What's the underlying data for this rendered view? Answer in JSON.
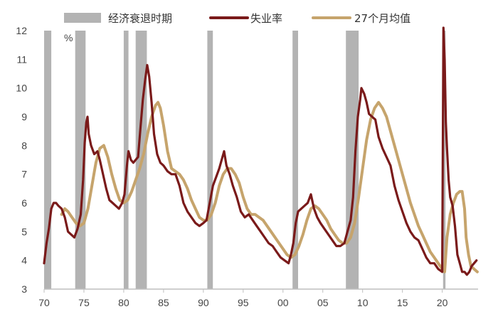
{
  "chart_data": {
    "type": "line",
    "unit": "%",
    "x_ticks": [
      {
        "x": 1970,
        "label": "70"
      },
      {
        "x": 1975,
        "label": "75"
      },
      {
        "x": 1980,
        "label": "80"
      },
      {
        "x": 1985,
        "label": "85"
      },
      {
        "x": 1990,
        "label": "90"
      },
      {
        "x": 1995,
        "label": "95"
      },
      {
        "x": 2000,
        "label": "00"
      },
      {
        "x": 2005,
        "label": "05"
      },
      {
        "x": 2010,
        "label": "10"
      },
      {
        "x": 2015,
        "label": "15"
      },
      {
        "x": 2020,
        "label": "20"
      }
    ],
    "xlim": [
      1970,
      2024.5
    ],
    "ylim": [
      3,
      12
    ],
    "y_ticks": [
      3,
      4,
      5,
      6,
      7,
      8,
      9,
      10,
      11,
      12
    ],
    "grid": false,
    "legend_position": "top",
    "legend": [
      {
        "label": "经济衰退时期",
        "kind": "bar",
        "color": "#b3b3b3"
      },
      {
        "label": "失业率",
        "kind": "line",
        "color": "#7a1a1a"
      },
      {
        "label": "27个月均值",
        "kind": "line",
        "color": "#c6a46c"
      }
    ],
    "recessions": [
      {
        "start": 1970.0,
        "end": 1970.9
      },
      {
        "start": 1973.9,
        "end": 1975.2
      },
      {
        "start": 1980.0,
        "end": 1980.6
      },
      {
        "start": 1981.5,
        "end": 1982.9
      },
      {
        "start": 1990.5,
        "end": 1991.2
      },
      {
        "start": 2001.2,
        "end": 2001.9
      },
      {
        "start": 2007.9,
        "end": 2009.5
      },
      {
        "start": 2020.1,
        "end": 2020.4
      }
    ],
    "series": [
      {
        "name": "失业率",
        "color": "#7a1a1a",
        "x": [
          1970.0,
          1970.3,
          1970.6,
          1970.9,
          1971.2,
          1971.5,
          1971.8,
          1972.2,
          1972.6,
          1973.0,
          1973.4,
          1973.8,
          1974.2,
          1974.6,
          1974.9,
          1975.1,
          1975.3,
          1975.45,
          1975.6,
          1975.9,
          1976.3,
          1976.7,
          1977.0,
          1977.4,
          1977.8,
          1978.2,
          1978.6,
          1979.0,
          1979.4,
          1979.8,
          1980.1,
          1980.4,
          1980.6,
          1980.9,
          1981.2,
          1981.5,
          1981.8,
          1982.1,
          1982.4,
          1982.7,
          1982.95,
          1983.2,
          1983.5,
          1983.8,
          1984.2,
          1984.6,
          1985.0,
          1985.5,
          1986.0,
          1986.5,
          1987.0,
          1987.5,
          1988.0,
          1988.5,
          1989.0,
          1989.5,
          1990.0,
          1990.4,
          1990.8,
          1991.2,
          1991.6,
          1992.0,
          1992.4,
          1992.6,
          1992.9,
          1993.3,
          1993.7,
          1994.2,
          1994.7,
          1995.2,
          1995.7,
          1996.2,
          1996.7,
          1997.2,
          1997.7,
          1998.2,
          1998.7,
          1999.2,
          1999.7,
          2000.2,
          2000.7,
          2001.0,
          2001.3,
          2001.6,
          2001.9,
          2002.3,
          2002.7,
          2003.1,
          2003.5,
          2003.9,
          2004.3,
          2004.7,
          2005.2,
          2005.7,
          2006.2,
          2006.7,
          2007.2,
          2007.7,
          2008.1,
          2008.5,
          2008.8,
          2009.1,
          2009.4,
          2009.7,
          2009.85,
          2010.2,
          2010.5,
          2010.8,
          2011.2,
          2011.6,
          2012.0,
          2012.5,
          2013.0,
          2013.5,
          2014.0,
          2014.5,
          2015.0,
          2015.5,
          2016.0,
          2016.5,
          2017.0,
          2017.5,
          2018.0,
          2018.5,
          2019.0,
          2019.5,
          2020.0,
          2020.15,
          2020.3,
          2020.45,
          2020.6,
          2020.8,
          2021.0,
          2021.3,
          2021.6,
          2021.9,
          2022.2,
          2022.5,
          2022.8,
          2023.1,
          2023.4,
          2023.7,
          2024.0,
          2024.3
        ],
        "y": [
          3.9,
          4.6,
          5.1,
          5.8,
          6.0,
          6.0,
          5.9,
          5.8,
          5.5,
          5.0,
          4.9,
          4.8,
          5.1,
          5.6,
          6.8,
          8.1,
          8.8,
          9.0,
          8.4,
          8.0,
          7.7,
          7.8,
          7.5,
          7.0,
          6.5,
          6.1,
          6.0,
          5.9,
          5.8,
          6.0,
          6.3,
          7.3,
          7.8,
          7.5,
          7.4,
          7.5,
          7.6,
          8.6,
          9.6,
          10.3,
          10.8,
          10.4,
          9.5,
          8.4,
          7.7,
          7.4,
          7.3,
          7.1,
          7.0,
          7.0,
          6.6,
          6.0,
          5.7,
          5.5,
          5.3,
          5.2,
          5.3,
          5.4,
          6.0,
          6.6,
          6.9,
          7.2,
          7.6,
          7.8,
          7.3,
          7.0,
          6.6,
          6.2,
          5.7,
          5.5,
          5.6,
          5.4,
          5.2,
          5.0,
          4.8,
          4.6,
          4.5,
          4.3,
          4.1,
          4.0,
          3.9,
          4.2,
          4.6,
          5.3,
          5.7,
          5.8,
          5.9,
          6.0,
          6.3,
          5.8,
          5.5,
          5.3,
          5.1,
          4.9,
          4.7,
          4.5,
          4.5,
          4.6,
          5.0,
          5.4,
          6.2,
          7.8,
          9.0,
          9.6,
          10.0,
          9.8,
          9.5,
          9.1,
          9.0,
          8.9,
          8.3,
          7.9,
          7.6,
          7.3,
          6.6,
          6.1,
          5.7,
          5.3,
          5.0,
          4.8,
          4.7,
          4.4,
          4.1,
          3.9,
          3.9,
          3.7,
          3.6,
          12.1,
          11.0,
          8.8,
          7.9,
          6.8,
          6.2,
          5.9,
          5.2,
          4.2,
          3.9,
          3.6,
          3.6,
          3.5,
          3.6,
          3.8,
          3.9,
          4.0
        ]
      },
      {
        "name": "27个月均值",
        "color": "#c6a46c",
        "x": [
          1972.2,
          1972.6,
          1973.0,
          1973.5,
          1974.0,
          1974.5,
          1975.0,
          1975.5,
          1976.0,
          1976.5,
          1977.0,
          1977.5,
          1978.0,
          1978.5,
          1979.0,
          1979.5,
          1980.0,
          1980.5,
          1981.0,
          1981.5,
          1982.0,
          1982.5,
          1983.0,
          1983.5,
          1984.0,
          1984.3,
          1984.6,
          1985.0,
          1985.5,
          1986.0,
          1986.5,
          1987.0,
          1987.5,
          1988.0,
          1988.5,
          1989.0,
          1989.5,
          1990.0,
          1990.5,
          1991.0,
          1991.5,
          1992.0,
          1992.5,
          1993.0,
          1993.5,
          1994.0,
          1994.5,
          1995.0,
          1995.5,
          1996.0,
          1996.5,
          1997.0,
          1997.5,
          1998.0,
          1998.5,
          1999.0,
          1999.5,
          2000.0,
          2000.5,
          2001.0,
          2001.5,
          2002.0,
          2002.5,
          2003.0,
          2003.5,
          2004.0,
          2004.5,
          2005.0,
          2005.5,
          2006.0,
          2006.5,
          2007.0,
          2007.5,
          2008.0,
          2008.5,
          2009.0,
          2009.5,
          2010.0,
          2010.5,
          2011.0,
          2011.5,
          2012.0,
          2012.5,
          2013.0,
          2013.5,
          2014.0,
          2014.5,
          2015.0,
          2015.5,
          2016.0,
          2016.5,
          2017.0,
          2017.5,
          2018.0,
          2018.5,
          2019.0,
          2019.5,
          2020.0,
          2020.3,
          2020.6,
          2021.0,
          2021.4,
          2021.8,
          2022.2,
          2022.5,
          2022.8,
          2023.0,
          2023.3,
          2023.6,
          2024.0,
          2024.4
        ],
        "y": [
          5.6,
          5.8,
          5.7,
          5.5,
          5.3,
          5.2,
          5.3,
          5.8,
          6.6,
          7.4,
          7.9,
          8.0,
          7.6,
          7.0,
          6.5,
          6.1,
          6.0,
          6.1,
          6.4,
          6.8,
          7.2,
          7.7,
          8.4,
          9.0,
          9.4,
          9.5,
          9.3,
          8.7,
          7.8,
          7.2,
          7.1,
          7.0,
          6.8,
          6.5,
          6.1,
          5.8,
          5.5,
          5.4,
          5.4,
          5.6,
          6.0,
          6.6,
          7.0,
          7.2,
          7.2,
          7.0,
          6.7,
          6.2,
          5.8,
          5.6,
          5.6,
          5.5,
          5.4,
          5.2,
          5.0,
          4.8,
          4.6,
          4.4,
          4.2,
          4.1,
          4.2,
          4.5,
          4.9,
          5.4,
          5.8,
          5.9,
          5.8,
          5.6,
          5.4,
          5.1,
          4.9,
          4.7,
          4.6,
          4.6,
          4.8,
          5.3,
          6.2,
          7.2,
          8.2,
          8.9,
          9.3,
          9.5,
          9.3,
          9.0,
          8.5,
          8.0,
          7.5,
          7.0,
          6.5,
          6.0,
          5.6,
          5.2,
          4.9,
          4.6,
          4.3,
          4.1,
          3.9,
          3.7,
          3.6,
          4.8,
          5.6,
          6.0,
          6.3,
          6.4,
          6.4,
          5.8,
          4.8,
          4.2,
          3.8,
          3.7,
          3.6
        ]
      }
    ]
  }
}
